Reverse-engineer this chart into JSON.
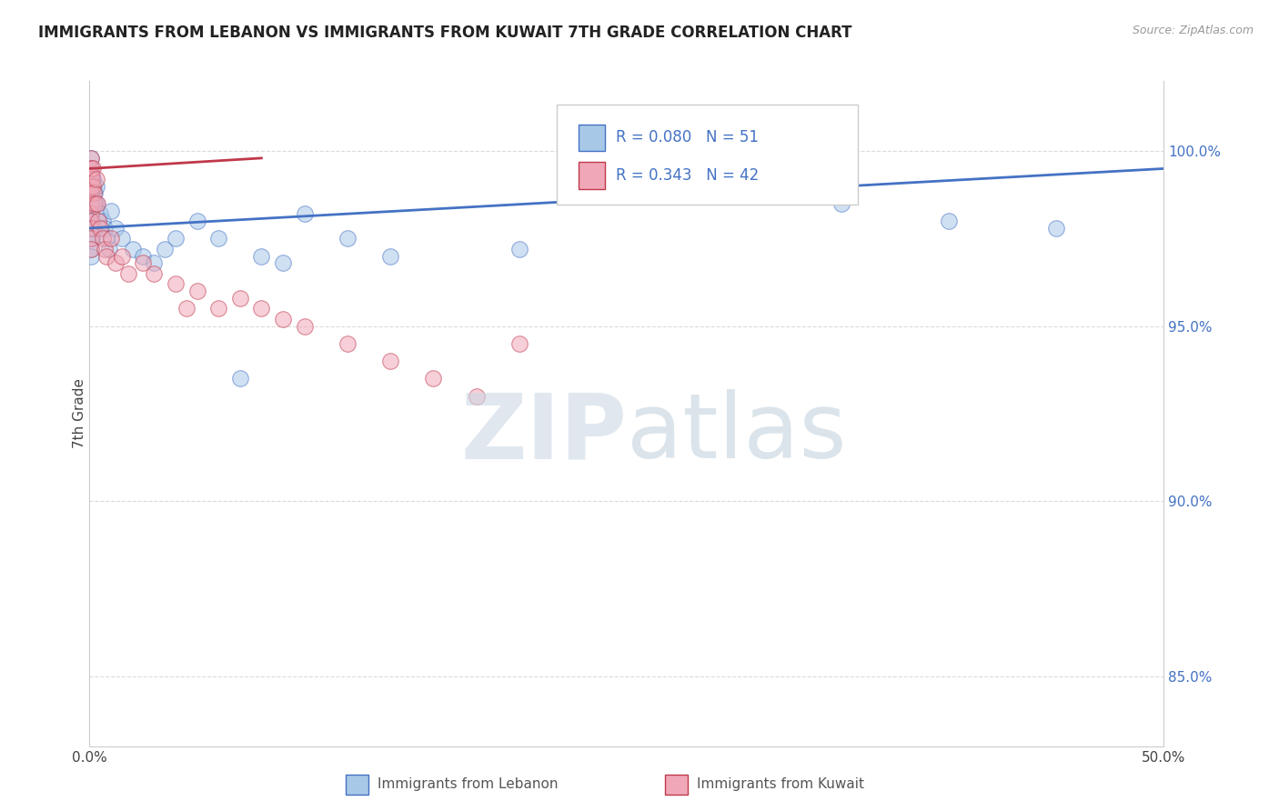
{
  "title": "IMMIGRANTS FROM LEBANON VS IMMIGRANTS FROM KUWAIT 7TH GRADE CORRELATION CHART",
  "source": "Source: ZipAtlas.com",
  "ylabel": "7th Grade",
  "xlim": [
    0.0,
    50.0
  ],
  "ylim": [
    83.0,
    102.0
  ],
  "xticks": [
    0.0,
    10.0,
    20.0,
    30.0,
    40.0,
    50.0
  ],
  "xtick_labels": [
    "0.0%",
    "",
    "",
    "",
    "",
    "50.0%"
  ],
  "ytick_labels": [
    "85.0%",
    "90.0%",
    "95.0%",
    "100.0%"
  ],
  "yticks": [
    85.0,
    90.0,
    95.0,
    100.0
  ],
  "legend_labels": [
    "Immigrants from Lebanon",
    "Immigrants from Kuwait"
  ],
  "R_lebanon": 0.08,
  "N_lebanon": 51,
  "R_kuwait": 0.343,
  "N_kuwait": 42,
  "color_lebanon": "#a8c8e8",
  "color_kuwait": "#f0a8b8",
  "trendline_color_lebanon": "#4472c4",
  "trendline_color_kuwait": "#c0384a",
  "watermark_zip_color": "#c8d8e8",
  "watermark_atlas_color": "#a0b8cc",
  "background_color": "#ffffff",
  "grid_color": "#cccccc",
  "title_color": "#222222",
  "axis_label_color": "#444444",
  "yaxis_tick_color": "#4472c4",
  "lebanon_x": [
    0.05,
    0.05,
    0.05,
    0.05,
    0.05,
    0.05,
    0.05,
    0.05,
    0.05,
    0.05,
    0.05,
    0.05,
    0.1,
    0.1,
    0.1,
    0.1,
    0.1,
    0.15,
    0.15,
    0.2,
    0.2,
    0.2,
    0.25,
    0.3,
    0.3,
    0.5,
    0.6,
    0.7,
    0.8,
    0.9,
    1.0,
    1.2,
    1.5,
    2.0,
    2.5,
    3.0,
    3.5,
    4.0,
    5.0,
    6.0,
    7.0,
    8.0,
    9.0,
    10.0,
    12.0,
    14.0,
    20.0,
    30.0,
    35.0,
    40.0,
    45.0
  ],
  "lebanon_y": [
    99.8,
    99.5,
    99.2,
    99.0,
    98.8,
    98.5,
    98.2,
    98.0,
    97.8,
    97.5,
    97.2,
    97.0,
    99.3,
    98.9,
    98.5,
    98.0,
    97.5,
    99.2,
    98.5,
    99.0,
    98.5,
    97.8,
    98.8,
    99.0,
    98.5,
    98.2,
    98.0,
    97.8,
    97.5,
    97.2,
    98.3,
    97.8,
    97.5,
    97.2,
    97.0,
    96.8,
    97.2,
    97.5,
    98.0,
    97.5,
    93.5,
    97.0,
    96.8,
    98.2,
    97.5,
    97.0,
    97.2,
    100.2,
    98.5,
    98.0,
    97.8
  ],
  "kuwait_x": [
    0.05,
    0.05,
    0.05,
    0.05,
    0.05,
    0.05,
    0.05,
    0.05,
    0.05,
    0.05,
    0.05,
    0.1,
    0.15,
    0.15,
    0.2,
    0.25,
    0.3,
    0.35,
    0.4,
    0.5,
    0.6,
    0.7,
    0.8,
    1.0,
    1.2,
    1.5,
    1.8,
    2.5,
    3.0,
    4.0,
    4.5,
    5.0,
    6.0,
    7.0,
    8.0,
    9.0,
    10.0,
    12.0,
    14.0,
    16.0,
    18.0,
    20.0
  ],
  "kuwait_y": [
    99.8,
    99.5,
    99.3,
    99.0,
    98.8,
    98.5,
    98.2,
    98.0,
    97.8,
    97.5,
    97.2,
    99.2,
    99.5,
    99.0,
    98.8,
    98.5,
    99.2,
    98.5,
    98.0,
    97.8,
    97.5,
    97.2,
    97.0,
    97.5,
    96.8,
    97.0,
    96.5,
    96.8,
    96.5,
    96.2,
    95.5,
    96.0,
    95.5,
    95.8,
    95.5,
    95.2,
    95.0,
    94.5,
    94.0,
    93.5,
    93.0,
    94.5
  ],
  "trendline_lebanon_x0": 0.0,
  "trendline_lebanon_y0": 97.8,
  "trendline_lebanon_x1": 50.0,
  "trendline_lebanon_y1": 99.5,
  "trendline_kuwait_x0": 0.0,
  "trendline_kuwait_y0": 99.5,
  "trendline_kuwait_x1": 8.0,
  "trendline_kuwait_y1": 99.8
}
